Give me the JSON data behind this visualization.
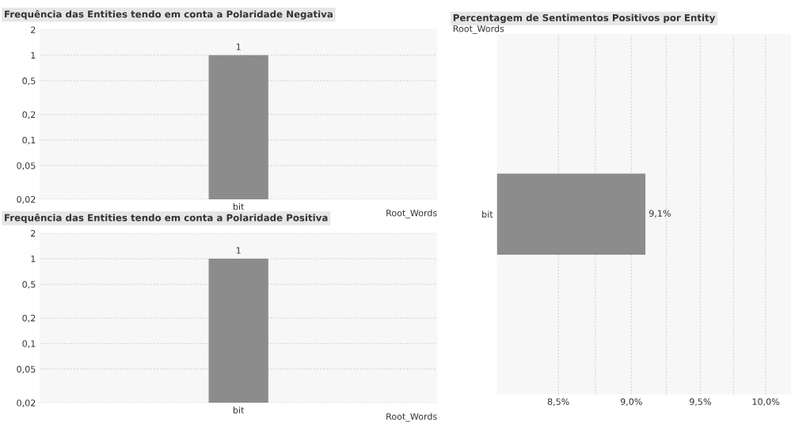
{
  "chart_data": [
    {
      "type": "bar",
      "title": "Frequência das Entities tendo em conta a Polaridade Negativa",
      "xlabel": "Root_Words",
      "categories": [
        "bit"
      ],
      "values": [
        1
      ],
      "color": "#8c8c8c",
      "log": "y",
      "ylim": [
        0.02,
        2
      ],
      "yticks": [
        {
          "value": 0.02,
          "label": "0,02"
        },
        {
          "value": 0.05,
          "label": "0,05"
        },
        {
          "value": 0.1,
          "label": "0,1"
        },
        {
          "value": 0.2,
          "label": "0,2"
        },
        {
          "value": 0.5,
          "label": "0,5"
        },
        1,
        2
      ],
      "grid": "y",
      "data_labels": true
    },
    {
      "type": "bar",
      "title": "Frequência das Entities tendo em conta a Polaridade Positiva",
      "xlabel": "Root_Words",
      "categories": [
        "bit"
      ],
      "values": [
        1
      ],
      "color": "#8c8c8c",
      "log": "y",
      "ylim": [
        0.02,
        2
      ],
      "yticks": [
        {
          "value": 0.02,
          "label": "0,02"
        },
        {
          "value": 0.05,
          "label": "0,05"
        },
        {
          "value": 0.1,
          "label": "0,1"
        },
        {
          "value": 0.2,
          "label": "0,2"
        },
        {
          "value": 0.5,
          "label": "0,5"
        },
        1,
        2
      ],
      "grid": "y",
      "data_labels": true
    },
    {
      "type": "bar",
      "orientation": "horizontal",
      "title": "Percentagem de Sentimentos Positivos por Entity",
      "ylabel": "Root_Words",
      "categories": [
        "bit"
      ],
      "values": [
        9.1
      ],
      "value_labels": [
        "9,1%"
      ],
      "color": "#8c8c8c",
      "log": "x",
      "xlim": [
        8.1,
        10.2
      ],
      "xticks": [
        {
          "value": 8.5,
          "label": "8,5%"
        },
        {
          "value": 8.75,
          "label": null
        },
        {
          "value": 9.0,
          "label": "9,0%"
        },
        {
          "value": 9.25,
          "label": null
        },
        {
          "value": 9.5,
          "label": "9,5%"
        },
        {
          "value": 9.75,
          "label": null
        },
        {
          "value": 10.0,
          "label": "10,0%"
        }
      ],
      "grid": "x"
    }
  ]
}
